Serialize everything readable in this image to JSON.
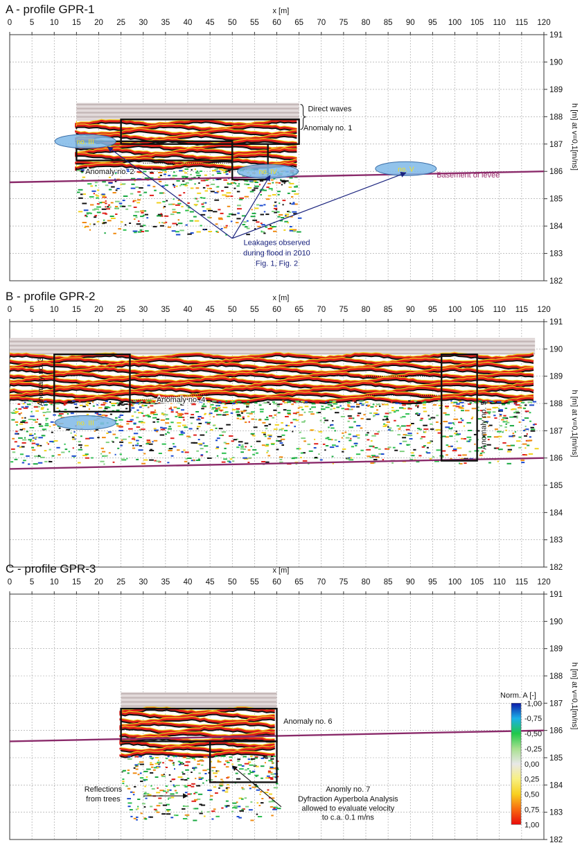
{
  "chart_data": [
    {
      "type": "heatmap",
      "panel_label": "A",
      "title": "A - profile GPR-1",
      "xlabel": "x [m]",
      "ylabel": "h [m] at v=0,1[m/ns]",
      "xlim": [
        0,
        120
      ],
      "ylim": [
        182,
        191
      ],
      "x_ticks": [
        "0",
        "5",
        "10",
        "15",
        "20",
        "25",
        "30",
        "35",
        "40",
        "45",
        "50",
        "55",
        "60",
        "65",
        "70",
        "75",
        "80",
        "85",
        "90",
        "95",
        "100",
        "105",
        "110",
        "115",
        "120"
      ],
      "y_ticks": [
        "191",
        "190",
        "189",
        "188",
        "187",
        "186",
        "185",
        "184",
        "183",
        "182"
      ],
      "grid": true,
      "radargram": {
        "x": [
          15,
          65
        ],
        "h_top": 188.5,
        "h_bottom": 183.7,
        "direct_wave_band": [
          187.85,
          188.5
        ]
      },
      "basement_line": {
        "x": [
          0,
          120
        ],
        "h": [
          185.6,
          186.0
        ],
        "label": "Basement of levee"
      },
      "anomaly_boxes": [
        {
          "x": [
            25,
            65
          ],
          "h": [
            187.0,
            187.9
          ]
        },
        {
          "x": [
            15,
            50
          ],
          "h": [
            186.4,
            187.1
          ]
        },
        {
          "x": [
            50,
            58
          ],
          "h": [
            185.7,
            187.0
          ]
        }
      ],
      "leakages": [
        {
          "label": "no. III",
          "x": 17,
          "h": 187.1
        },
        {
          "label": "no. IV",
          "x": 58,
          "h": 186.0
        },
        {
          "label": "no. V",
          "x": 89,
          "h": 186.1
        }
      ],
      "annotations": [
        {
          "text": "Direct waves",
          "x": 67,
          "h": 188.2
        },
        {
          "text": "Anomaly no. 1",
          "x": 66,
          "h": 187.5
        },
        {
          "text": "Anomaly no. 2",
          "x": 17,
          "h": 185.9
        },
        {
          "text": "Leakages observed",
          "x": 60,
          "h": 183.3
        },
        {
          "text": "during flood in 2010",
          "x": 60,
          "h": 182.92
        },
        {
          "text": "Fig. 1, Fig. 2",
          "x": 60,
          "h": 182.55
        }
      ]
    },
    {
      "type": "heatmap",
      "panel_label": "B",
      "title": "B - profile GPR-2",
      "xlabel": "x [m]",
      "ylabel": "h [m] at v=0,1[m/ns]",
      "xlim": [
        0,
        120
      ],
      "ylim": [
        182,
        191
      ],
      "x_ticks": [
        "0",
        "5",
        "10",
        "15",
        "20",
        "25",
        "30",
        "35",
        "40",
        "45",
        "50",
        "55",
        "60",
        "65",
        "70",
        "75",
        "80",
        "85",
        "90",
        "95",
        "100",
        "105",
        "110",
        "115",
        "120"
      ],
      "y_ticks": [
        "191",
        "190",
        "189",
        "188",
        "187",
        "186",
        "185",
        "184",
        "183",
        "182"
      ],
      "grid": true,
      "radargram": {
        "x": [
          0,
          118
        ],
        "h_top": 190.4,
        "h_bottom": 185.8,
        "direct_wave_band": [
          189.8,
          190.4
        ]
      },
      "basement_line": {
        "x": [
          0,
          120
        ],
        "h": [
          185.6,
          186.0
        ]
      },
      "anomaly_boxes": [
        {
          "x": [
            10,
            27
          ],
          "h": [
            187.7,
            189.8
          ]
        },
        {
          "x": [
            97,
            105
          ],
          "h": [
            185.9,
            189.8
          ]
        }
      ],
      "leakages": [
        {
          "label": "no. III",
          "x": 17,
          "h": 187.3
        }
      ],
      "annotations": [
        {
          "text": "Anomaly no. 3",
          "x": 7.5,
          "h": 188.8,
          "rotated": true
        },
        {
          "text": "Anomaly no. 4",
          "x": 33,
          "h": 188.05
        },
        {
          "text": "Anomaly no. 5",
          "x": 107,
          "h": 187.2,
          "rotated": true
        }
      ]
    },
    {
      "type": "heatmap",
      "panel_label": "C",
      "title": "C - profile GPR-3",
      "xlabel": "x [m]",
      "ylabel": "h [m] at v=0,1[m/ns]",
      "xlim": [
        0,
        120
      ],
      "ylim": [
        182,
        191
      ],
      "x_ticks": [
        "0",
        "5",
        "10",
        "15",
        "20",
        "25",
        "30",
        "35",
        "40",
        "45",
        "50",
        "55",
        "60",
        "65",
        "70",
        "75",
        "80",
        "85",
        "90",
        "95",
        "100",
        "105",
        "110",
        "115",
        "120"
      ],
      "y_ticks": [
        "191",
        "190",
        "189",
        "188",
        "187",
        "186",
        "185",
        "184",
        "183",
        "182"
      ],
      "grid": true,
      "radargram": {
        "x": [
          25,
          60
        ],
        "h_top": 187.4,
        "h_bottom": 182.7,
        "direct_wave_band": [
          186.8,
          187.4
        ]
      },
      "basement_line": {
        "x": [
          0,
          120
        ],
        "h": [
          185.6,
          186.0
        ]
      },
      "anomaly_boxes": [
        {
          "x": [
            25,
            60
          ],
          "h": [
            185.6,
            186.8
          ]
        },
        {
          "x": [
            45,
            60
          ],
          "h": [
            184.1,
            185.6
          ]
        }
      ],
      "annotations": [
        {
          "text": "Anomaly no. 6",
          "x": 61.5,
          "h": 186.25
        },
        {
          "text": "Reflections",
          "x": 21,
          "h": 183.75
        },
        {
          "text": "from trees",
          "x": 21,
          "h": 183.4
        },
        {
          "text": "Anomly no. 7",
          "x": 76,
          "h": 183.75
        },
        {
          "text": "Dyfraction Ayperbola  Analysis",
          "x": 76,
          "h": 183.4
        },
        {
          "text": "allowed to evaluate velocity",
          "x": 76,
          "h": 183.05
        },
        {
          "text": "to c.a. 0.1 m/ns",
          "x": 76,
          "h": 182.72
        }
      ],
      "colorbar": {
        "title": "Norm. A [-]",
        "ticks": [
          "-1,00",
          "-0,75",
          "-0,50",
          "-0,25",
          "0,00",
          "0,25",
          "0,50",
          "0,75",
          "1,00"
        ],
        "colors": [
          "#0c1aa8",
          "#1ab0e8",
          "#20c84a",
          "#a8e090",
          "#e8e8e8",
          "#f8f080",
          "#f8d020",
          "#f86a10",
          "#e80a0a"
        ]
      }
    }
  ]
}
